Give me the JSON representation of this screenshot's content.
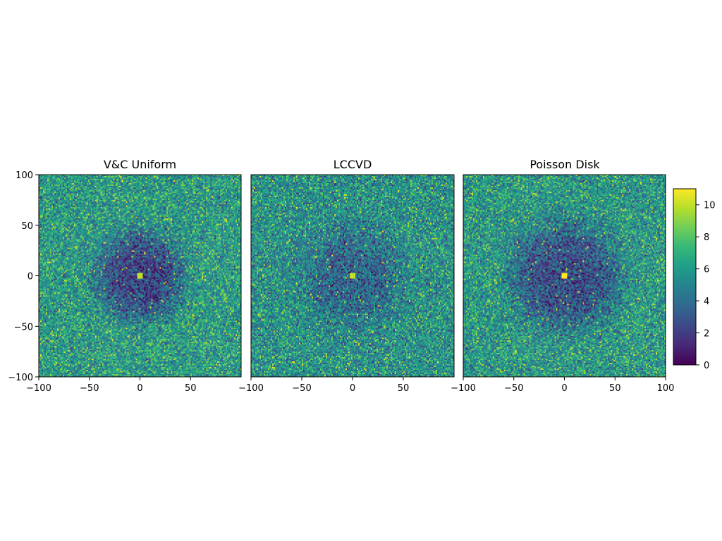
{
  "chart_data": [
    {
      "type": "heatmap",
      "title": "V&C Uniform",
      "xlabel": "",
      "ylabel": "",
      "xlim": [
        -100,
        100
      ],
      "ylim": [
        -100,
        100
      ],
      "xticks": [
        -100,
        -50,
        0,
        50
      ],
      "yticks": [
        100,
        50,
        0,
        -50,
        -100
      ],
      "grid_cells": 144,
      "pattern": {
        "background_mean": 6.0,
        "center_mean": 2.3,
        "dip_radius": 45,
        "center_peak": 10
      },
      "grid": false
    },
    {
      "type": "heatmap",
      "title": "LCCVD",
      "xlabel": "",
      "ylabel": "",
      "xlim": [
        -100,
        100
      ],
      "ylim": [
        -100,
        100
      ],
      "xticks": [
        -100,
        -50,
        0,
        50
      ],
      "yticks": [],
      "grid_cells": 144,
      "pattern": {
        "background_mean": 5.6,
        "center_mean": 3.6,
        "dip_radius": 50,
        "center_peak": 10
      },
      "grid": false
    },
    {
      "type": "heatmap",
      "title": "Poisson Disk",
      "xlabel": "",
      "ylabel": "",
      "xlim": [
        -100,
        100
      ],
      "ylim": [
        -100,
        100
      ],
      "xticks": [
        -100,
        -50,
        0,
        50,
        100
      ],
      "yticks": [],
      "grid_cells": 144,
      "pattern": {
        "background_mean": 5.9,
        "center_mean": 2.6,
        "dip_radius": 55,
        "center_peak": 11
      },
      "grid": false
    }
  ],
  "colorbar": {
    "colormap": "viridis",
    "range": [
      0,
      11
    ],
    "ticks": [
      0,
      2,
      4,
      6,
      8,
      10
    ]
  },
  "colors": {
    "viridis_stops": [
      "#440154",
      "#482878",
      "#3e4989",
      "#31688e",
      "#26828e",
      "#1f9e89",
      "#35b779",
      "#6ece58",
      "#b5de2b",
      "#fde725"
    ]
  }
}
